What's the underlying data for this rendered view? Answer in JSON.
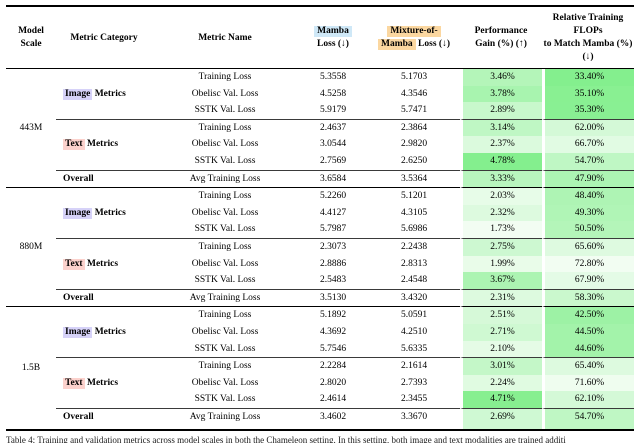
{
  "palette": {
    "blue": "#cfe8f7",
    "orange": "#fbd7a0",
    "lavender": "#d6d2f8",
    "pink": "#fcd2cd"
  },
  "green_scale": {
    "light": "#f2fdf2",
    "dark": "#84ef8e",
    "gain_min": 1.73,
    "gain_max": 4.78,
    "flops_min": 33.4,
    "flops_max": 72.8
  },
  "table": {
    "caption_top_fragment": "",
    "caption_bottom": "Table 4: Training and validation metrics across model scales in both the Chameleon setting. In this setting, both image and text modalities are trained additi",
    "header": [
      {
        "name": "model-scale",
        "lines": [
          [
            "Model"
          ],
          [
            "Scale"
          ]
        ]
      },
      {
        "name": "metric-category",
        "lines": [
          [
            "Metric Category"
          ]
        ]
      },
      {
        "name": "metric-name",
        "lines": [
          [
            "Metric Name"
          ]
        ]
      },
      {
        "name": "mamba-loss",
        "lines": [
          [
            {
              "t": "Mamba",
              "hl": "blue"
            }
          ],
          [
            "Loss (↓)"
          ]
        ]
      },
      {
        "name": "mixture-of-mamba-loss",
        "lines": [
          [
            {
              "t": "Mixture-of-",
              "hl": "orange"
            }
          ],
          [
            {
              "t": "Mamba",
              "hl": "orange"
            },
            {
              "t": " Loss (↓)"
            }
          ]
        ]
      },
      {
        "name": "performance-gain",
        "lines": [
          [
            "Performance"
          ],
          [
            "Gain (%) (↑)"
          ]
        ]
      },
      {
        "name": "relative-flops",
        "lines": [
          [
            "Relative Training FLOPs"
          ],
          [
            "to Match Mamba (%) (↓)"
          ]
        ]
      }
    ],
    "groups": [
      {
        "scale": "443M",
        "sections": [
          {
            "category": [
              {
                "t": "Image",
                "hl": "lavender"
              },
              {
                "t": " Metrics"
              }
            ],
            "rows": [
              {
                "name": "Training Loss",
                "mamba": "5.3558",
                "mom": "5.1703",
                "gain": 3.46,
                "flops": 33.4
              },
              {
                "name": "Obelisc Val. Loss",
                "mamba": "4.5258",
                "mom": "4.3546",
                "gain": 3.78,
                "flops": 35.1
              },
              {
                "name": "SSTK Val. Loss",
                "mamba": "5.9179",
                "mom": "5.7471",
                "gain": 2.89,
                "flops": 35.3
              }
            ]
          },
          {
            "category": [
              {
                "t": "Text",
                "hl": "pink"
              },
              {
                "t": " Metrics"
              }
            ],
            "rows": [
              {
                "name": "Training Loss",
                "mamba": "2.4637",
                "mom": "2.3864",
                "gain": 3.14,
                "flops": 62.0
              },
              {
                "name": "Obelisc Val. Loss",
                "mamba": "3.0544",
                "mom": "2.9820",
                "gain": 2.37,
                "flops": 66.7
              },
              {
                "name": "SSTK Val. Loss",
                "mamba": "2.7569",
                "mom": "2.6250",
                "gain": 4.78,
                "flops": 54.7
              }
            ]
          }
        ],
        "overall": {
          "category": [
            {
              "t": "Overall"
            }
          ],
          "name": "Avg Training Loss",
          "mamba": "3.6584",
          "mom": "3.5364",
          "gain": 3.33,
          "flops": 47.9
        }
      },
      {
        "scale": "880M",
        "sections": [
          {
            "category": [
              {
                "t": "Image",
                "hl": "lavender"
              },
              {
                "t": " Metrics"
              }
            ],
            "rows": [
              {
                "name": "Training Loss",
                "mamba": "5.2260",
                "mom": "5.1201",
                "gain": 2.03,
                "flops": 48.4
              },
              {
                "name": "Obelisc Val. Loss",
                "mamba": "4.4127",
                "mom": "4.3105",
                "gain": 2.32,
                "flops": 49.3
              },
              {
                "name": "SSTK Val. Loss",
                "mamba": "5.7987",
                "mom": "5.6986",
                "gain": 1.73,
                "flops": 50.5
              }
            ]
          },
          {
            "category": [
              {
                "t": "Text",
                "hl": "pink"
              },
              {
                "t": " Metrics"
              }
            ],
            "rows": [
              {
                "name": "Training Loss",
                "mamba": "2.3073",
                "mom": "2.2438",
                "gain": 2.75,
                "flops": 65.6
              },
              {
                "name": "Obelisc Val. Loss",
                "mamba": "2.8886",
                "mom": "2.8313",
                "gain": 1.99,
                "flops": 72.8
              },
              {
                "name": "SSTK Val. Loss",
                "mamba": "2.5483",
                "mom": "2.4548",
                "gain": 3.67,
                "flops": 67.9
              }
            ]
          }
        ],
        "overall": {
          "category": [
            {
              "t": "Overall"
            }
          ],
          "name": "Avg Training Loss",
          "mamba": "3.5130",
          "mom": "3.4320",
          "gain": 2.31,
          "flops": 58.3
        }
      },
      {
        "scale": "1.5B",
        "sections": [
          {
            "category": [
              {
                "t": "Image",
                "hl": "lavender"
              },
              {
                "t": " Metrics"
              }
            ],
            "rows": [
              {
                "name": "Training Loss",
                "mamba": "5.1892",
                "mom": "5.0591",
                "gain": 2.51,
                "flops": 42.5
              },
              {
                "name": "Obelisc Val. Loss",
                "mamba": "4.3692",
                "mom": "4.2510",
                "gain": 2.71,
                "flops": 44.5
              },
              {
                "name": "SSTK Val. Loss",
                "mamba": "5.7546",
                "mom": "5.6335",
                "gain": 2.1,
                "flops": 44.6
              }
            ]
          },
          {
            "category": [
              {
                "t": "Text",
                "hl": "pink"
              },
              {
                "t": " Metrics"
              }
            ],
            "rows": [
              {
                "name": "Training Loss",
                "mamba": "2.2284",
                "mom": "2.1614",
                "gain": 3.01,
                "flops": 65.4
              },
              {
                "name": "Obelisc Val. Loss",
                "mamba": "2.8020",
                "mom": "2.7393",
                "gain": 2.24,
                "flops": 71.6
              },
              {
                "name": "SSTK Val. Loss",
                "mamba": "2.4614",
                "mom": "2.3455",
                "gain": 4.71,
                "flops": 62.1
              }
            ]
          }
        ],
        "overall": {
          "category": [
            {
              "t": "Overall"
            }
          ],
          "name": "Avg Training Loss",
          "mamba": "3.4602",
          "mom": "3.3670",
          "gain": 2.69,
          "flops": 54.7
        }
      }
    ]
  }
}
